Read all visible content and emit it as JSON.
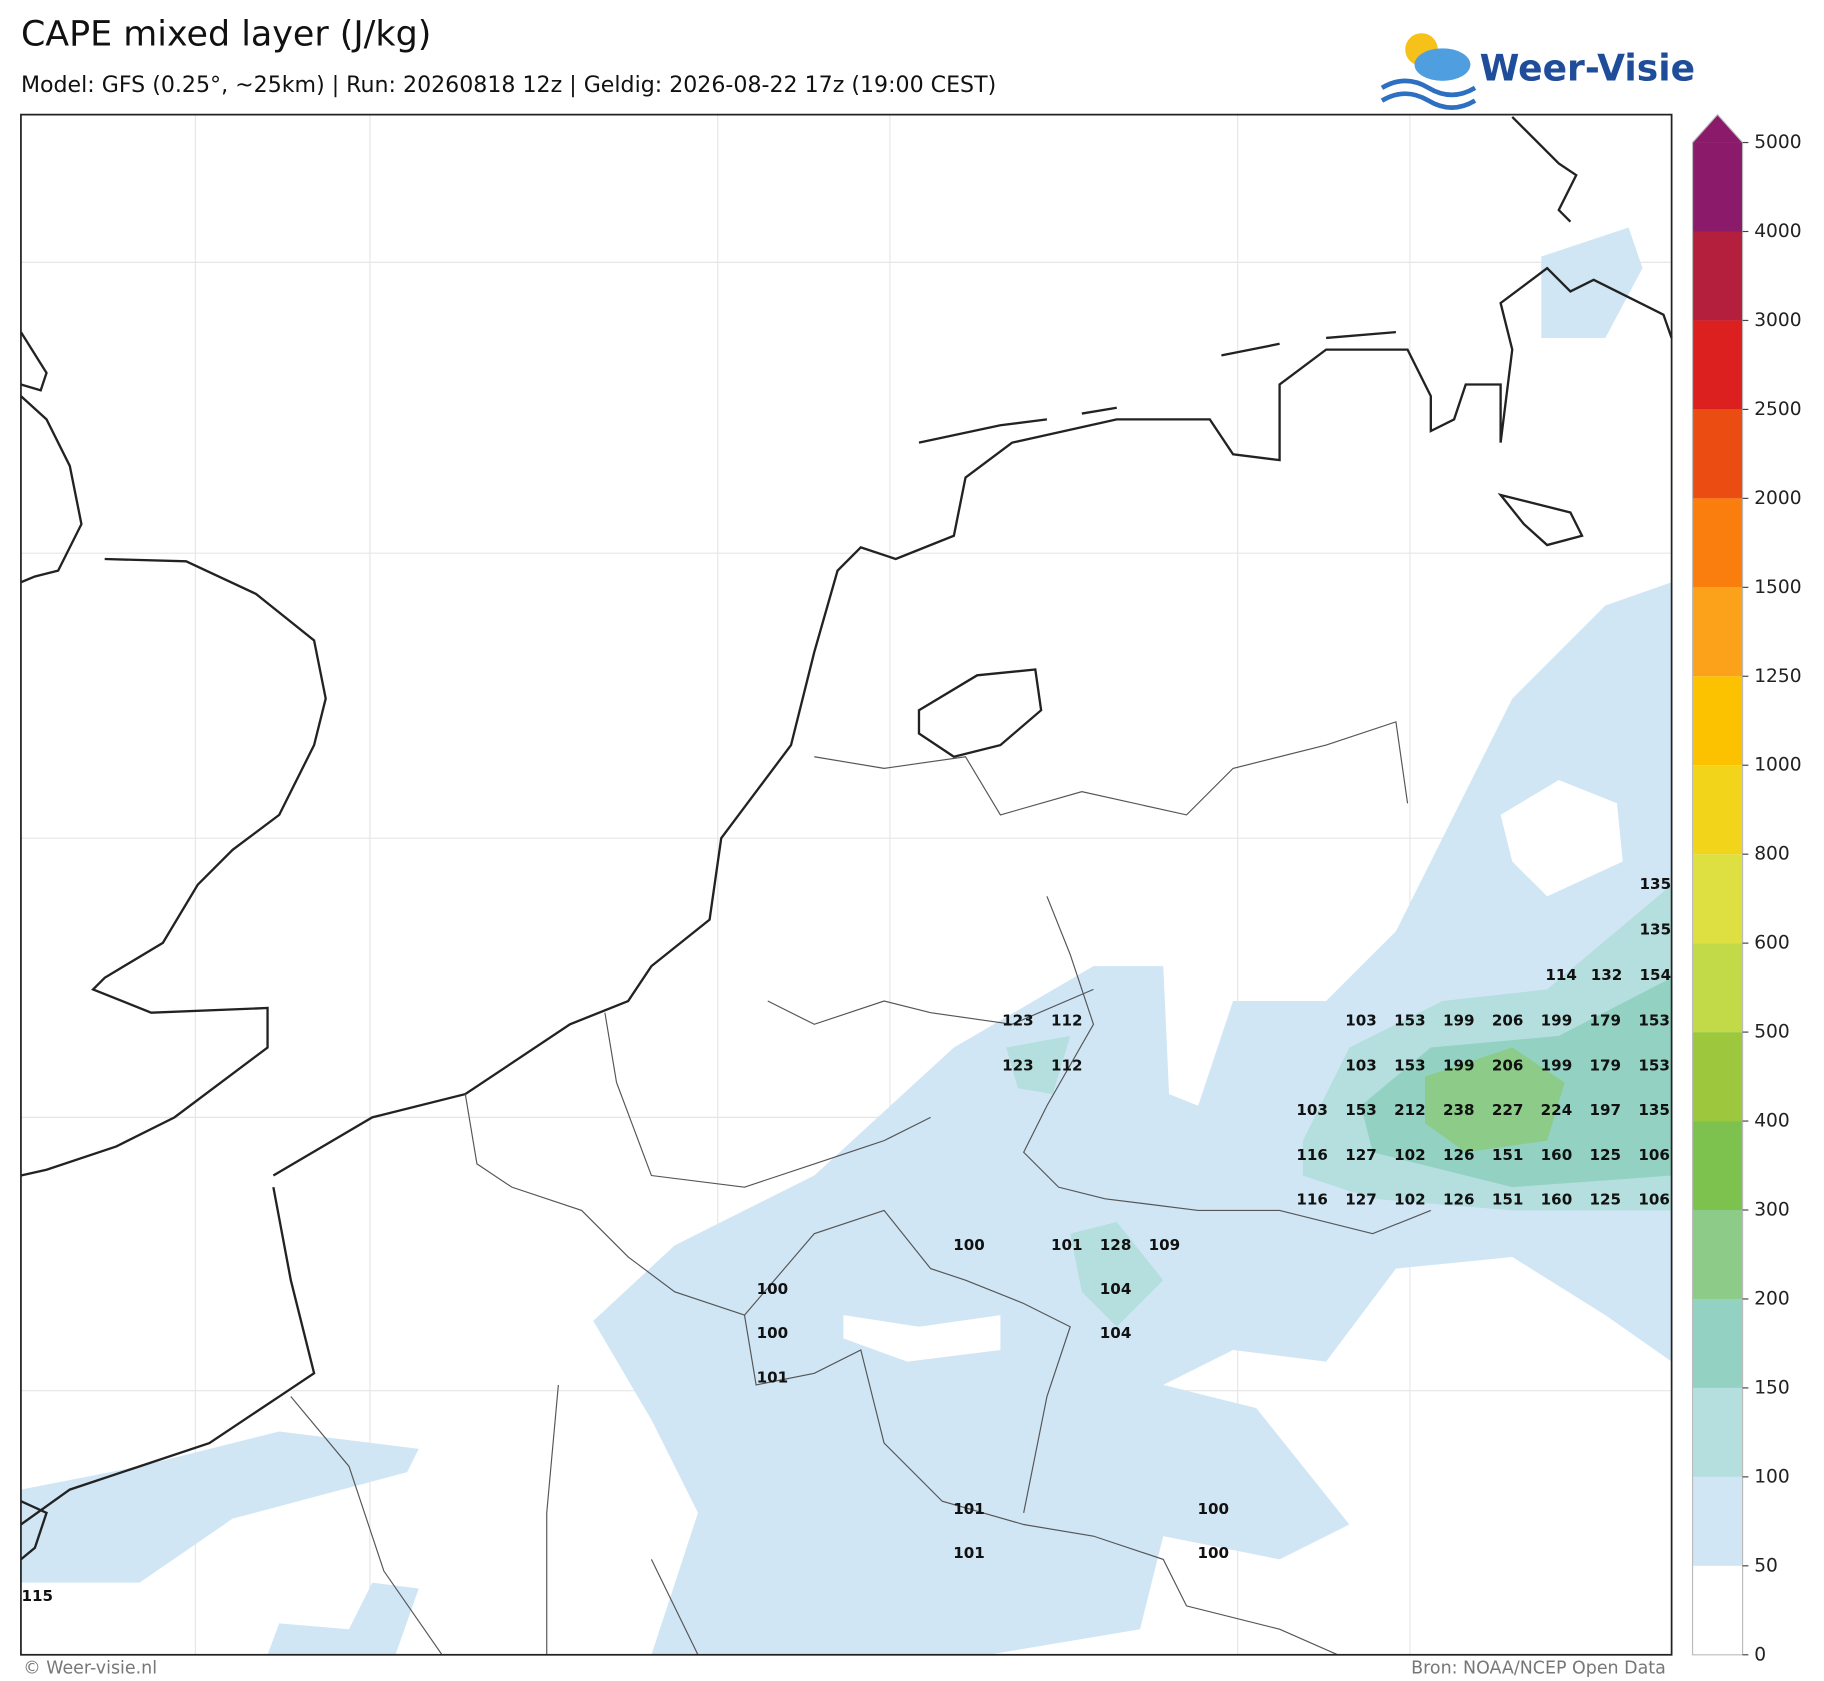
{
  "header": {
    "title": "CAPE mixed layer (J/kg)",
    "subtitle": "Model: GFS (0.25°, ~25km)  |  Run: 20260818 12z  |  Geldig: 2026-08-22 17z (19:00 CEST)",
    "logo": "Weer-Visie"
  },
  "colorbar": {
    "ticks": [
      0,
      50,
      100,
      150,
      200,
      300,
      400,
      500,
      600,
      800,
      1000,
      1250,
      1500,
      2000,
      2500,
      3000,
      4000,
      5000
    ],
    "colors": [
      "#ffffff",
      "#d0e6f5",
      "#b4dfde",
      "#93d1c2",
      "#8ccb88",
      "#7dc24f",
      "#9dc83e",
      "#c2d948",
      "#dde040",
      "#f2d51a",
      "#fcc200",
      "#fca21a",
      "#f97e0e",
      "#ea4c12",
      "#dc2020",
      "#b51f3e",
      "#8b1a6b"
    ],
    "over_color": "#8b1a6b"
  },
  "map": {
    "labels": [
      135,
      135,
      114,
      132,
      154,
      123,
      112,
      103,
      153,
      199,
      206,
      199,
      179,
      153,
      123,
      112,
      103,
      153,
      199,
      206,
      199,
      179,
      153,
      103,
      153,
      212,
      238,
      227,
      224,
      197,
      135,
      116,
      127,
      102,
      126,
      151,
      160,
      125,
      106,
      116,
      127,
      102,
      126,
      151,
      160,
      125,
      106,
      100,
      101,
      128,
      109,
      100,
      104,
      100,
      104,
      101,
      101,
      100,
      101,
      100,
      115
    ]
  },
  "footer": {
    "left": "© Weer-visie.nl",
    "right": "Bron: NOAA/NCEP Open Data"
  }
}
